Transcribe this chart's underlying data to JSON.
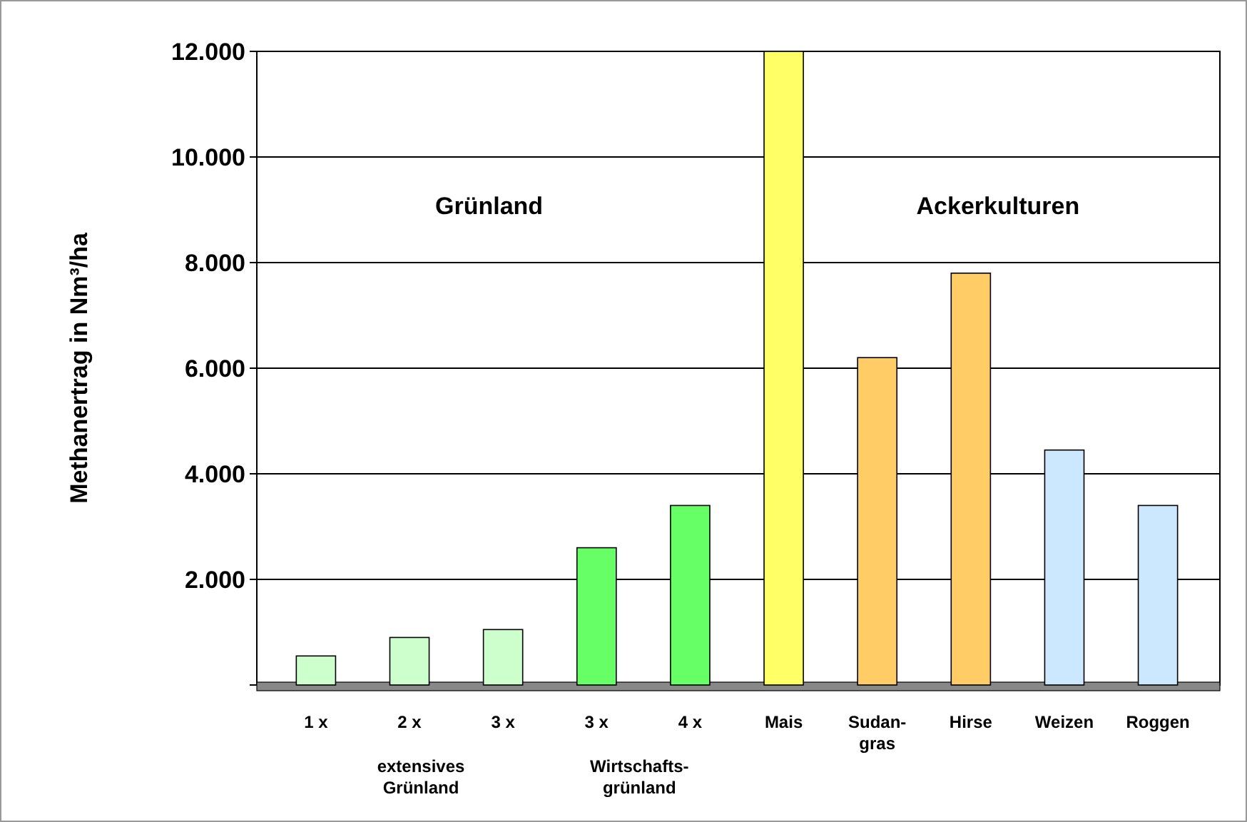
{
  "chart_data": {
    "type": "bar",
    "ylabel": "Methanertrag in Nm³/ha",
    "categories": [
      "1 x",
      "2 x",
      "3 x",
      "3 x",
      "4 x",
      "Mais",
      "Sudan-\ngras",
      "Hirse",
      "Weizen",
      "Roggen"
    ],
    "values": [
      550,
      900,
      1050,
      2600,
      3400,
      12000,
      6200,
      7800,
      4450,
      3400
    ],
    "colors": [
      "#ccffcc",
      "#ccffcc",
      "#ccffcc",
      "#66ff66",
      "#66ff66",
      "#ffff66",
      "#ffcc66",
      "#ffcc66",
      "#cce8ff",
      "#cce8ff"
    ],
    "ylim": [
      0,
      12000
    ],
    "yticks": [
      {
        "value": 0,
        "label": null
      },
      {
        "value": 2000,
        "label": "2.000"
      },
      {
        "value": 4000,
        "label": "4.000"
      },
      {
        "value": 6000,
        "label": "6.000"
      },
      {
        "value": 8000,
        "label": "8.000"
      },
      {
        "value": 10000,
        "label": "10.000"
      },
      {
        "value": 12000,
        "label": "12.000"
      }
    ],
    "grid": "y",
    "annotations": [
      "Grünland",
      "Ackerkulturen",
      "extensives\nGrünland",
      "Wirtschafts-\ngrünland"
    ]
  }
}
